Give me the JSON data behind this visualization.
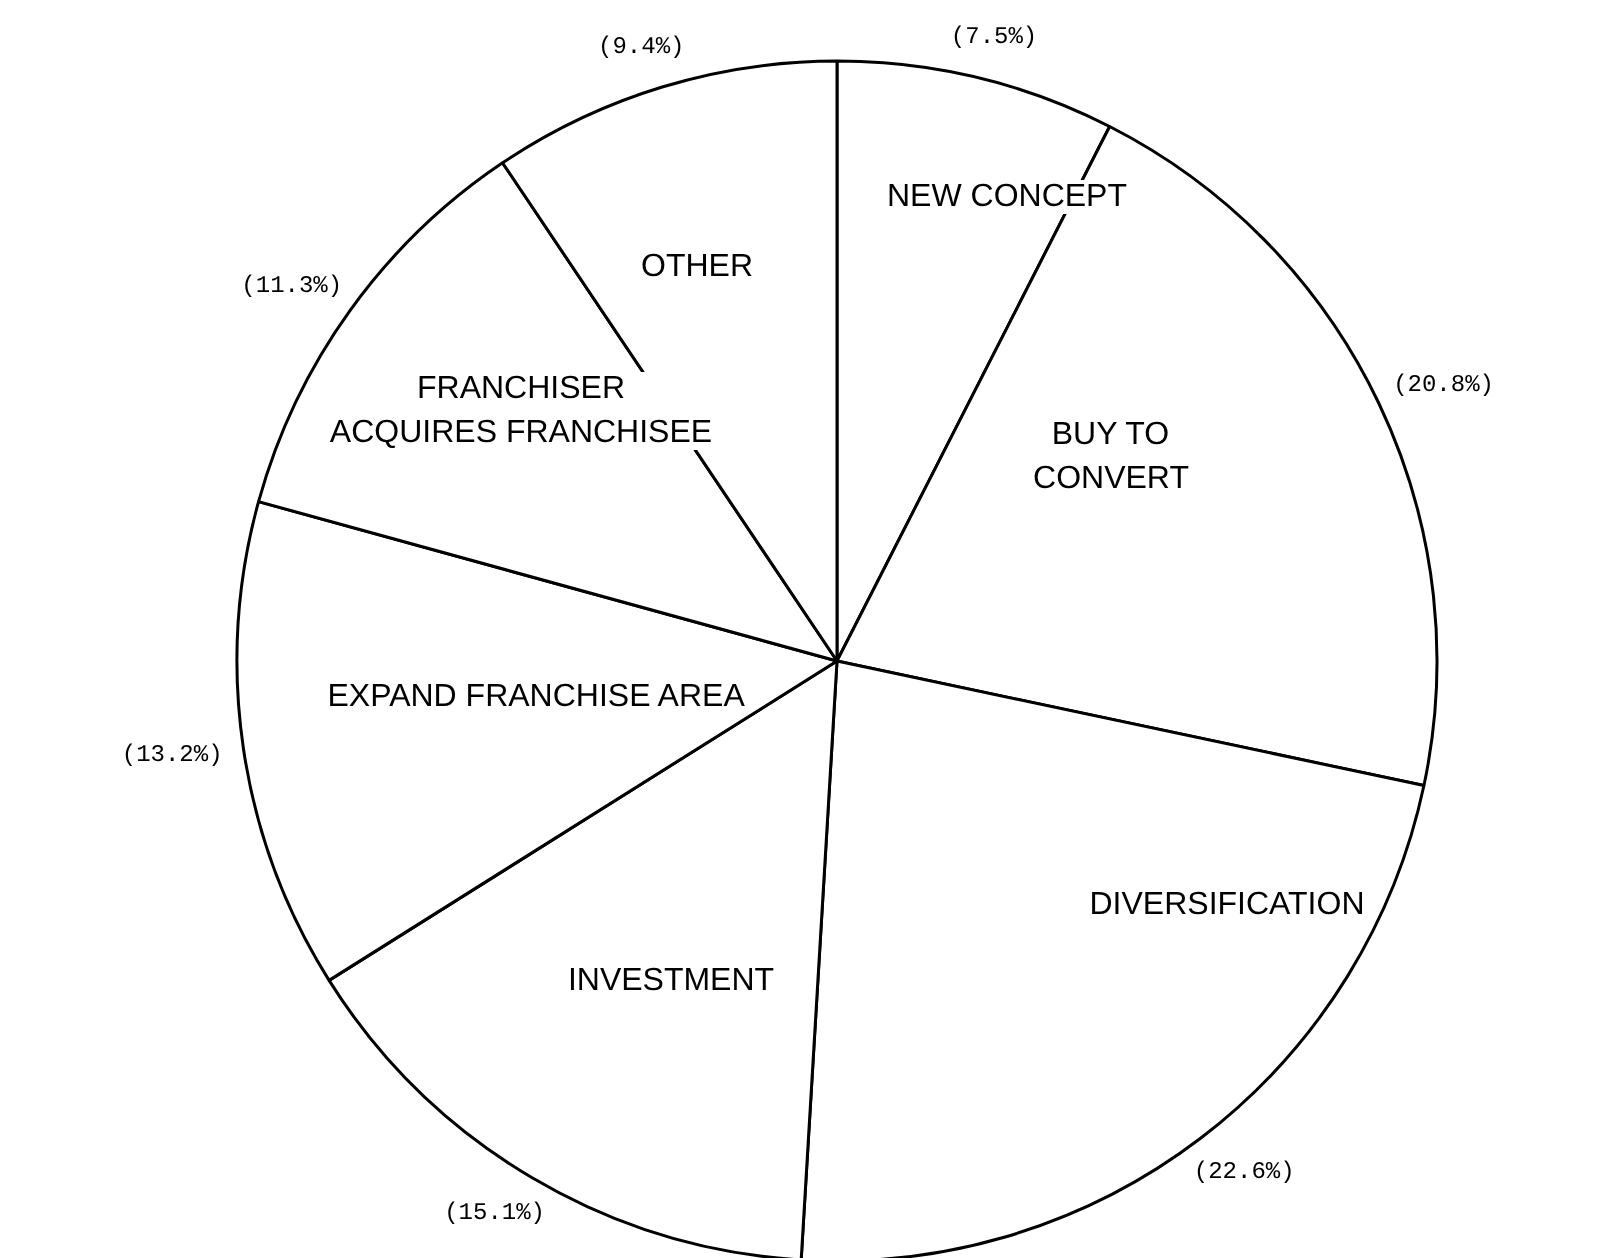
{
  "chart_data": {
    "type": "pie",
    "categories": [
      "NEW CONCEPT",
      "BUY TO\nCONVERT",
      "DIVERSIFICATION",
      "INVESTMENT",
      "EXPAND FRANCHISE AREA",
      "FRANCHISER\nACQUIRES FRANCHISEE",
      "OTHER"
    ],
    "values": [
      7.5,
      20.8,
      22.6,
      15.1,
      13.2,
      11.3,
      9.4
    ],
    "colors": [
      "#ffffff",
      "#ffffff",
      "#ffffff",
      "#ffffff",
      "#ffffff",
      "#ffffff",
      "#ffffff"
    ],
    "value_labels": [
      "(7.5%)",
      "(20.8%)",
      "(22.6%)",
      "(15.1%)",
      "(13.2%)",
      "(11.3%)",
      "(9.4%)"
    ]
  }
}
